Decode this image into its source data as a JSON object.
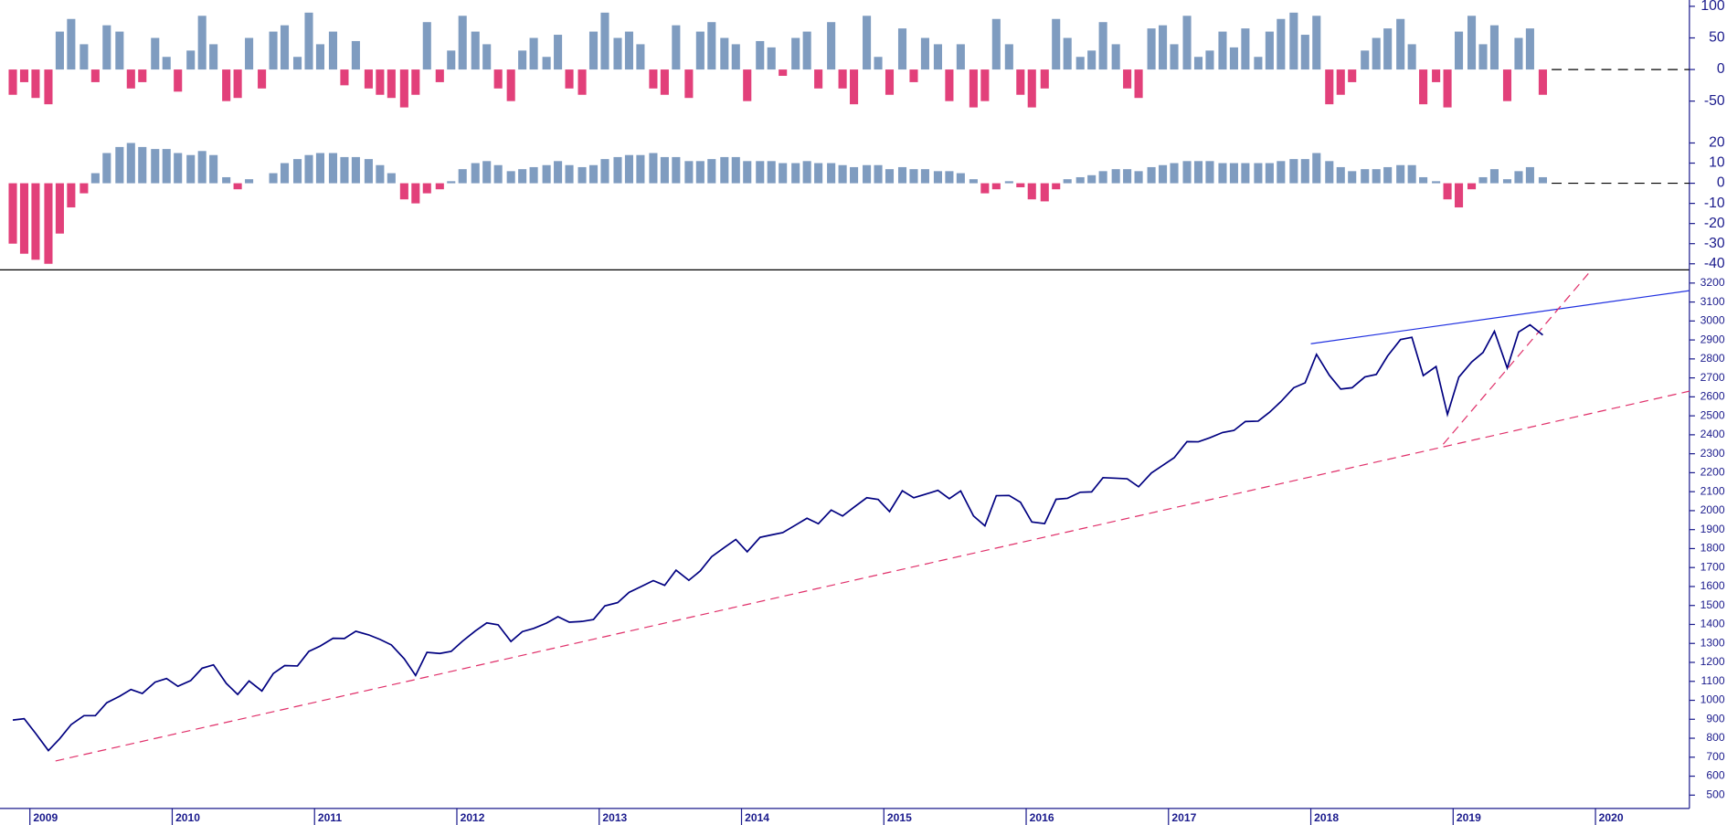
{
  "chart_data": [
    {
      "type": "bar",
      "positive_color": "#7f9cc0",
      "negative_color": "#e2407a",
      "zero_line": true,
      "xlim": [
        2008.79,
        2020.66
      ],
      "ylim": [
        -100,
        110
      ],
      "yticks": [
        100,
        50,
        0,
        -50
      ],
      "x": [
        2008.88,
        2008.96,
        2009.04,
        2009.13,
        2009.21,
        2009.29,
        2009.38,
        2009.46,
        2009.54,
        2009.63,
        2009.71,
        2009.79,
        2009.88,
        2009.96,
        2010.04,
        2010.13,
        2010.21,
        2010.29,
        2010.38,
        2010.46,
        2010.54,
        2010.63,
        2010.71,
        2010.79,
        2010.88,
        2010.96,
        2011.04,
        2011.13,
        2011.21,
        2011.29,
        2011.38,
        2011.46,
        2011.54,
        2011.63,
        2011.71,
        2011.79,
        2011.88,
        2011.96,
        2012.04,
        2012.13,
        2012.21,
        2012.29,
        2012.38,
        2012.46,
        2012.54,
        2012.63,
        2012.71,
        2012.79,
        2012.88,
        2012.96,
        2013.04,
        2013.13,
        2013.21,
        2013.29,
        2013.38,
        2013.46,
        2013.54,
        2013.63,
        2013.71,
        2013.79,
        2013.88,
        2013.96,
        2014.04,
        2014.13,
        2014.21,
        2014.29,
        2014.38,
        2014.46,
        2014.54,
        2014.63,
        2014.71,
        2014.79,
        2014.88,
        2014.96,
        2015.04,
        2015.13,
        2015.21,
        2015.29,
        2015.38,
        2015.46,
        2015.54,
        2015.63,
        2015.71,
        2015.79,
        2015.88,
        2015.96,
        2016.04,
        2016.13,
        2016.21,
        2016.29,
        2016.38,
        2016.46,
        2016.54,
        2016.63,
        2016.71,
        2016.79,
        2016.88,
        2016.96,
        2017.04,
        2017.13,
        2017.21,
        2017.29,
        2017.38,
        2017.46,
        2017.54,
        2017.63,
        2017.71,
        2017.79,
        2017.88,
        2017.96,
        2018.04,
        2018.13,
        2018.21,
        2018.29,
        2018.38,
        2018.46,
        2018.54,
        2018.63,
        2018.71,
        2018.79,
        2018.88,
        2018.96,
        2019.04,
        2019.13,
        2019.21,
        2019.29,
        2019.38,
        2019.46,
        2019.54,
        2019.63
      ],
      "values": [
        -40,
        -20,
        -45,
        -55,
        60,
        80,
        40,
        -20,
        70,
        60,
        -30,
        -20,
        50,
        20,
        -35,
        30,
        85,
        40,
        -50,
        -45,
        50,
        -30,
        60,
        70,
        20,
        90,
        40,
        60,
        -25,
        45,
        -30,
        -40,
        -45,
        -60,
        -40,
        75,
        -20,
        30,
        85,
        60,
        40,
        -30,
        -50,
        30,
        50,
        20,
        55,
        -30,
        -40,
        60,
        90,
        50,
        60,
        40,
        -30,
        -40,
        70,
        -45,
        60,
        75,
        50,
        40,
        -50,
        45,
        35,
        -10,
        50,
        60,
        -30,
        75,
        -30,
        -55,
        85,
        20,
        -40,
        65,
        -20,
        50,
        40,
        -50,
        40,
        -60,
        -50,
        80,
        40,
        -40,
        -60,
        -30,
        80,
        50,
        20,
        30,
        75,
        40,
        -30,
        -45,
        65,
        70,
        40,
        85,
        20,
        30,
        60,
        35,
        65,
        20,
        60,
        80,
        90,
        55,
        85,
        -55,
        -40,
        -20,
        30,
        50,
        65,
        80,
        40,
        -55,
        -20,
        -60,
        60,
        85,
        40,
        70,
        -50,
        50,
        65,
        -40
      ]
    },
    {
      "type": "bar",
      "positive_color": "#7f9cc0",
      "negative_color": "#e2407a",
      "zero_line": true,
      "xlim": [
        2008.79,
        2020.66
      ],
      "ylim": [
        -43,
        24
      ],
      "yticks": [
        20,
        10,
        0,
        -10,
        -20,
        -30,
        -40
      ],
      "x": [
        2008.88,
        2008.96,
        2009.04,
        2009.13,
        2009.21,
        2009.29,
        2009.38,
        2009.46,
        2009.54,
        2009.63,
        2009.71,
        2009.79,
        2009.88,
        2009.96,
        2010.04,
        2010.13,
        2010.21,
        2010.29,
        2010.38,
        2010.46,
        2010.54,
        2010.63,
        2010.71,
        2010.79,
        2010.88,
        2010.96,
        2011.04,
        2011.13,
        2011.21,
        2011.29,
        2011.38,
        2011.46,
        2011.54,
        2011.63,
        2011.71,
        2011.79,
        2011.88,
        2011.96,
        2012.04,
        2012.13,
        2012.21,
        2012.29,
        2012.38,
        2012.46,
        2012.54,
        2012.63,
        2012.71,
        2012.79,
        2012.88,
        2012.96,
        2013.04,
        2013.13,
        2013.21,
        2013.29,
        2013.38,
        2013.46,
        2013.54,
        2013.63,
        2013.71,
        2013.79,
        2013.88,
        2013.96,
        2014.04,
        2014.13,
        2014.21,
        2014.29,
        2014.38,
        2014.46,
        2014.54,
        2014.63,
        2014.71,
        2014.79,
        2014.88,
        2014.96,
        2015.04,
        2015.13,
        2015.21,
        2015.29,
        2015.38,
        2015.46,
        2015.54,
        2015.63,
        2015.71,
        2015.79,
        2015.88,
        2015.96,
        2016.04,
        2016.13,
        2016.21,
        2016.29,
        2016.38,
        2016.46,
        2016.54,
        2016.63,
        2016.71,
        2016.79,
        2016.88,
        2016.96,
        2017.04,
        2017.13,
        2017.21,
        2017.29,
        2017.38,
        2017.46,
        2017.54,
        2017.63,
        2017.71,
        2017.79,
        2017.88,
        2017.96,
        2018.04,
        2018.13,
        2018.21,
        2018.29,
        2018.38,
        2018.46,
        2018.54,
        2018.63,
        2018.71,
        2018.79,
        2018.88,
        2018.96,
        2019.04,
        2019.13,
        2019.21,
        2019.29,
        2019.38,
        2019.46,
        2019.54,
        2019.63
      ],
      "values": [
        -30,
        -35,
        -38,
        -40,
        -25,
        -12,
        -5,
        5,
        15,
        18,
        20,
        18,
        17,
        17,
        15,
        14,
        16,
        14,
        3,
        -3,
        2,
        0,
        5,
        10,
        12,
        14,
        15,
        15,
        13,
        13,
        12,
        9,
        5,
        -8,
        -10,
        -5,
        -3,
        1,
        7,
        10,
        11,
        9,
        6,
        7,
        8,
        9,
        11,
        9,
        8,
        9,
        12,
        13,
        14,
        14,
        15,
        13,
        13,
        11,
        11,
        12,
        13,
        13,
        11,
        11,
        11,
        10,
        10,
        11,
        10,
        10,
        9,
        8,
        9,
        9,
        7,
        8,
        7,
        7,
        6,
        6,
        5,
        2,
        -5,
        -3,
        1,
        -2,
        -8,
        -9,
        -3,
        2,
        3,
        4,
        6,
        7,
        7,
        6,
        8,
        9,
        10,
        11,
        11,
        11,
        10,
        10,
        10,
        10,
        10,
        11,
        12,
        12,
        15,
        11,
        8,
        6,
        7,
        7,
        8,
        9,
        9,
        3,
        1,
        -8,
        -12,
        -3,
        3,
        7,
        2,
        6,
        8,
        3
      ]
    },
    {
      "type": "line",
      "color": "#000080",
      "xlim": [
        2008.79,
        2020.66
      ],
      "xticks": [
        2009,
        2010,
        2011,
        2012,
        2013,
        2014,
        2015,
        2016,
        2017,
        2018,
        2019,
        2020
      ],
      "ylim": [
        430,
        3258
      ],
      "yticks": [
        500,
        600,
        700,
        800,
        900,
        1000,
        1100,
        1200,
        1300,
        1400,
        1500,
        1600,
        1700,
        1800,
        1900,
        2000,
        2100,
        2200,
        2300,
        2400,
        2500,
        2600,
        2700,
        2800,
        2900,
        3000,
        3100,
        3200
      ],
      "x": [
        2008.88,
        2008.96,
        2009.04,
        2009.13,
        2009.21,
        2009.29,
        2009.38,
        2009.46,
        2009.54,
        2009.63,
        2009.71,
        2009.79,
        2009.88,
        2009.96,
        2010.04,
        2010.13,
        2010.21,
        2010.29,
        2010.38,
        2010.46,
        2010.54,
        2010.63,
        2010.71,
        2010.79,
        2010.88,
        2010.96,
        2011.04,
        2011.13,
        2011.21,
        2011.29,
        2011.38,
        2011.46,
        2011.54,
        2011.63,
        2011.71,
        2011.79,
        2011.88,
        2011.96,
        2012.04,
        2012.13,
        2012.21,
        2012.29,
        2012.38,
        2012.46,
        2012.54,
        2012.63,
        2012.71,
        2012.79,
        2012.88,
        2012.96,
        2013.04,
        2013.13,
        2013.21,
        2013.29,
        2013.38,
        2013.46,
        2013.54,
        2013.63,
        2013.71,
        2013.79,
        2013.88,
        2013.96,
        2014.04,
        2014.13,
        2014.21,
        2014.29,
        2014.38,
        2014.46,
        2014.54,
        2014.63,
        2014.71,
        2014.79,
        2014.88,
        2014.96,
        2015.04,
        2015.13,
        2015.21,
        2015.29,
        2015.38,
        2015.46,
        2015.54,
        2015.63,
        2015.71,
        2015.79,
        2015.88,
        2015.96,
        2016.04,
        2016.13,
        2016.21,
        2016.29,
        2016.38,
        2016.46,
        2016.54,
        2016.63,
        2016.71,
        2016.79,
        2016.88,
        2016.96,
        2017.04,
        2017.13,
        2017.21,
        2017.29,
        2017.38,
        2017.46,
        2017.54,
        2017.63,
        2017.71,
        2017.79,
        2017.88,
        2017.96,
        2018.04,
        2018.13,
        2018.21,
        2018.29,
        2018.38,
        2018.46,
        2018.54,
        2018.63,
        2018.71,
        2018.79,
        2018.88,
        2018.96,
        2019.04,
        2019.13,
        2019.21,
        2019.29,
        2019.38,
        2019.46,
        2019.54,
        2019.63
      ],
      "values": [
        896,
        903,
        826,
        735,
        798,
        872,
        919,
        919,
        987,
        1021,
        1057,
        1036,
        1096,
        1115,
        1074,
        1104,
        1169,
        1187,
        1089,
        1031,
        1102,
        1049,
        1141,
        1183,
        1181,
        1258,
        1286,
        1327,
        1326,
        1364,
        1345,
        1321,
        1292,
        1219,
        1131,
        1253,
        1247,
        1258,
        1312,
        1366,
        1408,
        1398,
        1310,
        1362,
        1379,
        1407,
        1441,
        1412,
        1416,
        1426,
        1498,
        1515,
        1569,
        1598,
        1631,
        1606,
        1686,
        1633,
        1682,
        1757,
        1806,
        1848,
        1783,
        1859,
        1872,
        1884,
        1924,
        1960,
        1931,
        2003,
        1972,
        2018,
        2068,
        2059,
        1995,
        2105,
        2068,
        2086,
        2107,
        2063,
        2104,
        1972,
        1920,
        2079,
        2080,
        2044,
        1940,
        1932,
        2060,
        2065,
        2097,
        2099,
        2174,
        2171,
        2168,
        2126,
        2199,
        2239,
        2279,
        2364,
        2363,
        2384,
        2412,
        2423,
        2470,
        2472,
        2519,
        2575,
        2648,
        2674,
        2824,
        2714,
        2641,
        2648,
        2705,
        2718,
        2816,
        2902,
        2914,
        2712,
        2760,
        2507,
        2704,
        2784,
        2834,
        2946,
        2752,
        2942,
        2980,
        2926
      ],
      "trendlines": [
        {
          "color": "#2030e0",
          "dashed": false,
          "x": [
            2018.0,
            2020.66
          ],
          "y": [
            2880,
            3160
          ]
        },
        {
          "color": "#e0306a",
          "dashed": true,
          "x": [
            2009.18,
            2020.66
          ],
          "y": [
            680,
            2630
          ]
        },
        {
          "color": "#e0306a",
          "dashed": true,
          "x": [
            2018.93,
            2019.95
          ],
          "y": [
            2350,
            3250
          ]
        }
      ]
    }
  ]
}
